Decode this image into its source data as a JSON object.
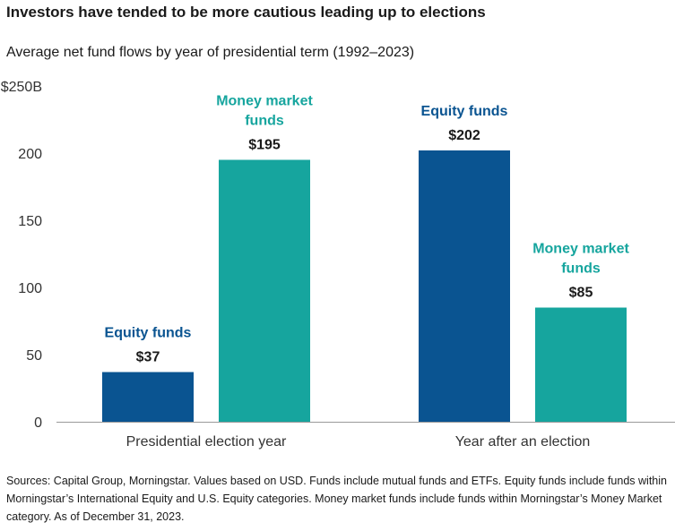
{
  "title": "Investors have tended to be more cautious leading up to elections",
  "subtitle": "Average net fund flows by year of presidential term (1992–2023)",
  "footnote": "Sources: Capital Group, Morningstar. Values based on USD. Funds include mutual funds and ETFs. Equity funds include funds within Morningstar’s International Equity and U.S. Equity categories. Money market funds include funds within Morningstar’s Money Market category. As of December 31, 2023.",
  "colors": {
    "equity": "#0a5491",
    "money_market": "#16a59e"
  },
  "chart_data": {
    "type": "bar",
    "categories": [
      "Presidential election year",
      "Year after an election"
    ],
    "series": [
      {
        "name": "Equity funds",
        "label_lines": [
          "Equity funds"
        ],
        "values": [
          37,
          202
        ],
        "value_labels": [
          "$37",
          "$202"
        ]
      },
      {
        "name": "Money market funds",
        "label_lines": [
          "Money market",
          "funds"
        ],
        "values": [
          195,
          85
        ],
        "value_labels": [
          "$195",
          "$85"
        ]
      }
    ],
    "yticks": [
      0,
      50,
      100,
      150,
      200,
      250
    ],
    "ytick_labels": [
      "0",
      "50",
      "100",
      "150",
      "200",
      "$250B"
    ],
    "ylim": [
      0,
      250
    ],
    "grid": false
  }
}
